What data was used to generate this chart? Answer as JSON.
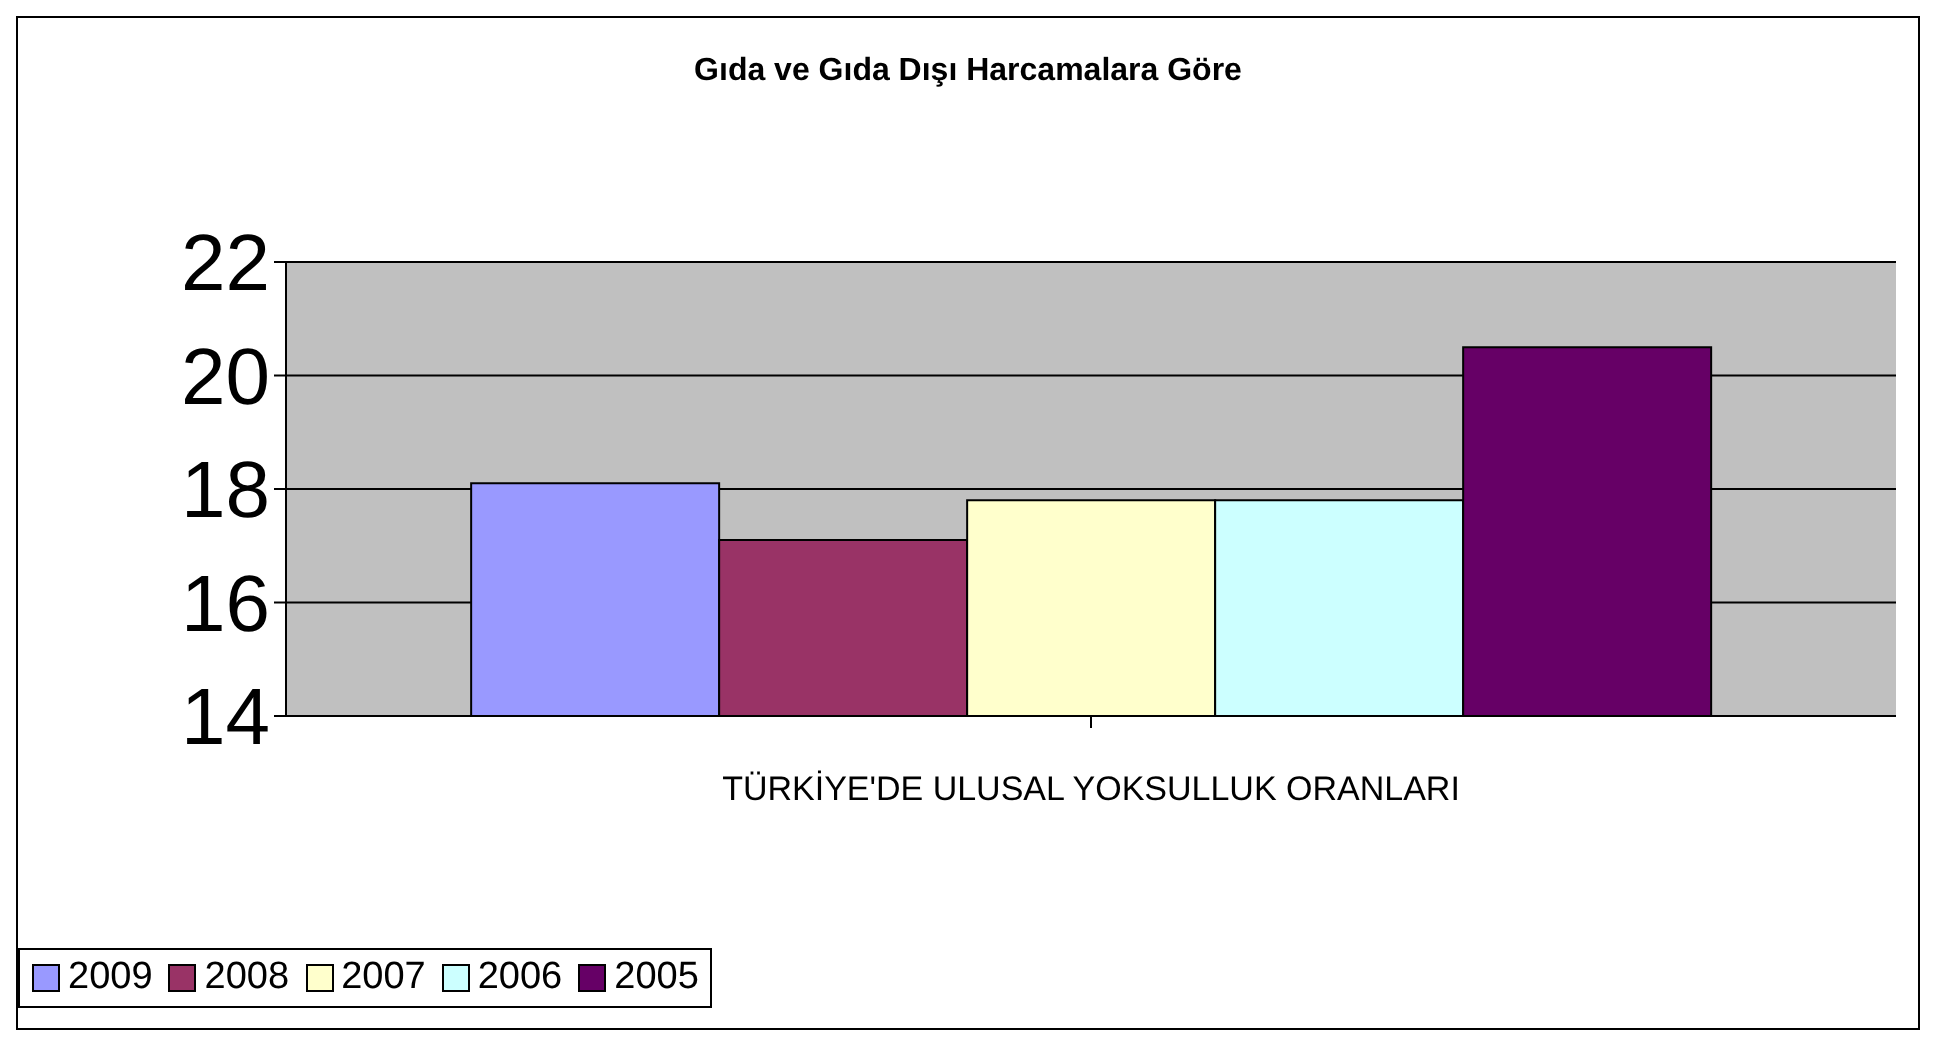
{
  "chart_data": {
    "type": "bar",
    "title": "Gıda ve Gıda Dışı Harcamalara Göre",
    "categories": [
      "TÜRKİYE'DE ULUSAL YOKSULLUK ORANLARI"
    ],
    "series": [
      {
        "name": "2009",
        "color": "#9999ff",
        "values": [
          18.1
        ]
      },
      {
        "name": "2008",
        "color": "#993366",
        "values": [
          17.1
        ]
      },
      {
        "name": "2007",
        "color": "#ffffcc",
        "values": [
          17.8
        ]
      },
      {
        "name": "2006",
        "color": "#ccffff",
        "values": [
          17.8
        ]
      },
      {
        "name": "2005",
        "color": "#660066",
        "values": [
          20.5
        ]
      }
    ],
    "ylim": [
      14,
      22
    ],
    "yticks": [
      14,
      16,
      18,
      20,
      22
    ],
    "grid": "y",
    "legend": "bottom"
  }
}
